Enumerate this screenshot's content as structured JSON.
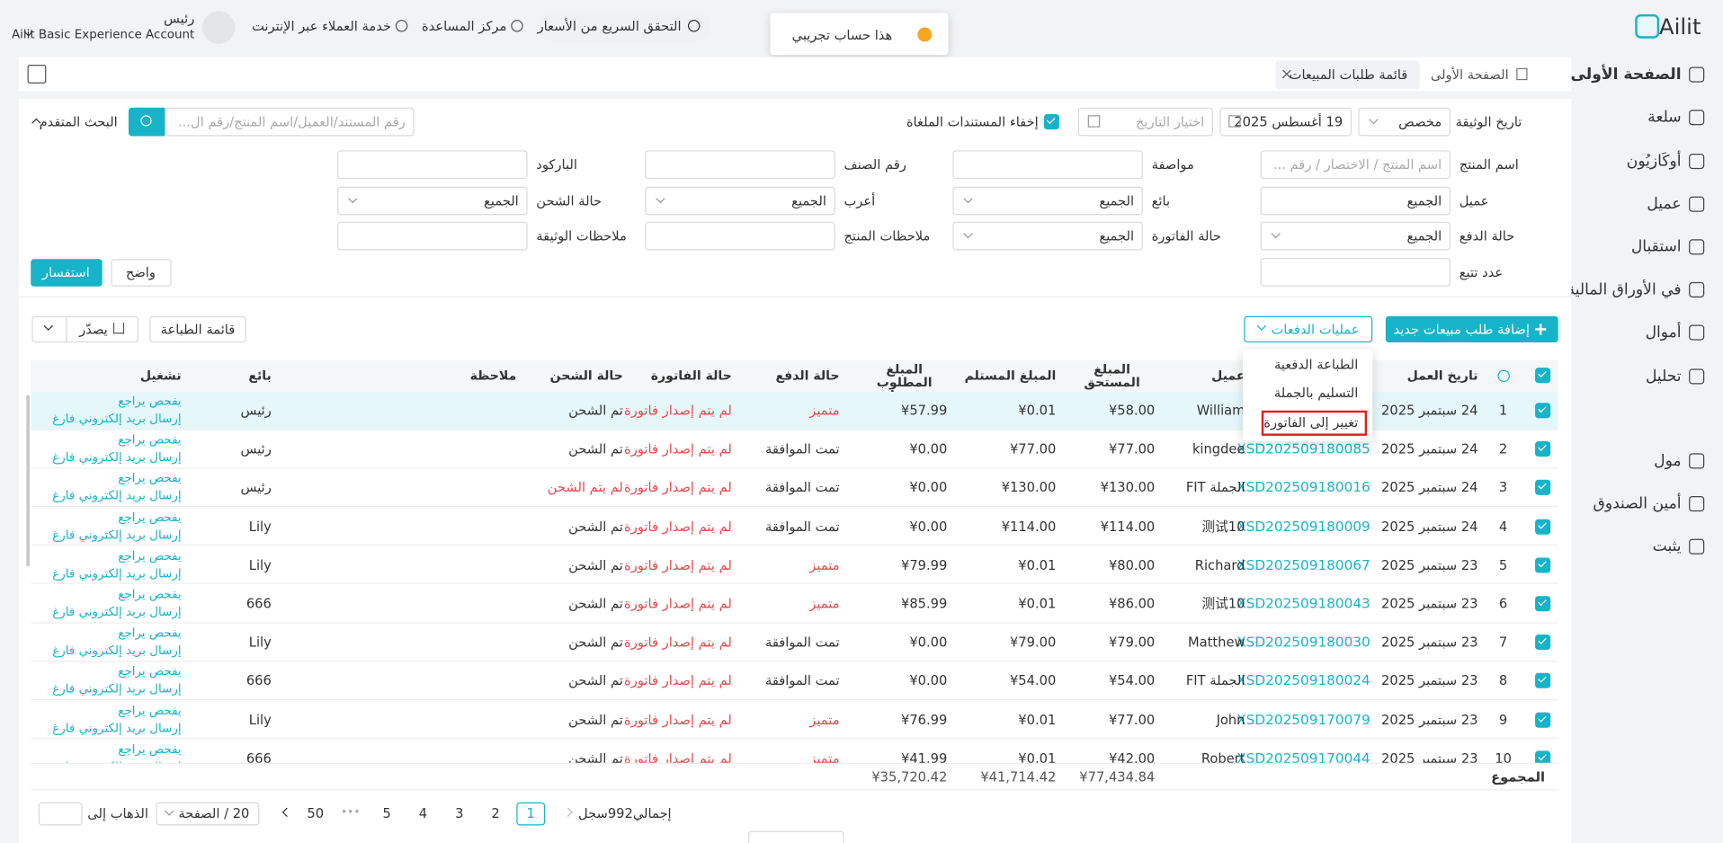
{
  "header": {
    "logo": "Ailit",
    "user": "رئيس",
    "account": "Ailit Basic Experience Account",
    "support": "خدمة العملاء عبر الإنترنت",
    "help": "مركز المساعدة",
    "price_check": "التحقق السريع من الأسعار",
    "toast": "هذا حساب تجريبي"
  },
  "sidebar": [
    "الصفحة الأولى",
    "سلعة",
    "أوكَازيُون",
    "عميل",
    "استقبال",
    "في الأوراق المالية",
    "أموال",
    "تحليل",
    "مول",
    "أمين الصندوق",
    "يثبت"
  ],
  "tabs": [
    "الصفحة الأولى",
    "قائمة طلبات المبيعات"
  ],
  "filters": {
    "doc_date": {
      "label": "تاريخ الوثيقة",
      "mode": "مخصص",
      "date": "19 أغسطس 2025",
      "date_placeholder": "اختيار التاريخ"
    },
    "hide_cancelled": "إخفاء المستندات الملغاة",
    "search_placeholder": "رقم المستند/العميل/اسم المنتج/رقم ال...",
    "advanced": "البحث المتقدم",
    "fields": [
      {
        "label": "اسم المنتج",
        "placeholder": "اسم المنتج / الاختصار / رقم ..."
      },
      {
        "label": "مواصفة"
      },
      {
        "label": "رقم الصنف"
      },
      {
        "label": "الباركود"
      },
      {
        "label": "عميل",
        "value": "الجميع"
      },
      {
        "label": "بائع",
        "value": "الجميع",
        "select": true
      },
      {
        "label": "أعرب",
        "value": "الجميع",
        "select": true
      },
      {
        "label": "حالة الشحن",
        "value": "الجميع",
        "select": true
      },
      {
        "label": "حالة الدفع",
        "value": "الجميع",
        "select": true
      },
      {
        "label": "حالة الفاتورة",
        "value": "الجميع",
        "select": true
      },
      {
        "label": "ملاحظات المنتج"
      },
      {
        "label": "ملاحظات الوثيقة"
      },
      {
        "label": "عدد تتبع"
      }
    ],
    "clear": "واضح",
    "query": "استفسار"
  },
  "actions": {
    "add": "إضافة طلب مبيعات جديد",
    "batch": "عمليات الدفعات",
    "batch_menu": [
      "الطباعة الدفعية",
      "التسليم بالجملة",
      "تغيير إلى الفاتورة"
    ],
    "print_list": "قائمة الطباعة",
    "export": "يصدّر"
  },
  "table": {
    "columns": [
      "تاريخ العمل",
      "عميل",
      "المبلغ المستحق",
      "المبلغ المستلم",
      "المبلغ المطلوب تحصيله",
      "حالة الدفع",
      "حالة الفاتورة",
      "حالة الشحن",
      "ملاحظة",
      "بائع",
      "تشغيل"
    ],
    "operations": [
      "يفحص يراجع",
      "إرسال بريد إلكتروني فارغ"
    ],
    "rows": [
      {
        "n": 1,
        "date": "24 سبتمبر 2025",
        "doc": null,
        "customer": "William",
        "due": "¥58.00",
        "received": "¥0.01",
        "outstanding": "¥57.99",
        "pay": {
          "text": "متميز",
          "color": "#e8484d"
        },
        "invoice": {
          "text": "لم يتم إصدار فاتورة",
          "color": "#e8484d"
        },
        "shipping": {
          "text": "تم الشحن",
          "color": "#333333"
        },
        "seller": "رئيس"
      },
      {
        "n": 2,
        "date": "24 سبتمبر 2025",
        "doc": "XSD202509180085",
        "customer": "kingdee",
        "due": "¥77.00",
        "received": "¥77.00",
        "outstanding": "¥0.00",
        "pay": {
          "text": "تمت الموافقة",
          "color": "#333333"
        },
        "invoice": {
          "text": "لم يتم إصدار فاتورة",
          "color": "#e8484d"
        },
        "shipping": {
          "text": "تم الشحن",
          "color": "#333333"
        },
        "seller": "رئيس"
      },
      {
        "n": 3,
        "date": "24 سبتمبر 2025",
        "doc": "XSD202509180016",
        "customer": "الجملة FIT",
        "due": "¥130.00",
        "received": "¥130.00",
        "outstanding": "¥0.00",
        "pay": {
          "text": "تمت الموافقة",
          "color": "#333333"
        },
        "invoice": {
          "text": "لم يتم إصدار فاتورة",
          "color": "#e8484d"
        },
        "shipping": {
          "text": "لم يتم الشحن",
          "color": "#e8484d"
        },
        "seller": "رئيس"
      },
      {
        "n": 4,
        "date": "24 سبتمبر 2025",
        "doc": "XSD202509180009",
        "customer": "测试10",
        "due": "¥114.00",
        "received": "¥114.00",
        "outstanding": "¥0.00",
        "pay": {
          "text": "تمت الموافقة",
          "color": "#333333"
        },
        "invoice": {
          "text": "لم يتم إصدار فاتورة",
          "color": "#e8484d"
        },
        "shipping": {
          "text": "تم الشحن",
          "color": "#333333"
        },
        "seller": "Lily"
      },
      {
        "n": 5,
        "date": "23 سبتمبر 2025",
        "doc": "XSD202509180067",
        "customer": "Richard",
        "due": "¥80.00",
        "received": "¥0.01",
        "outstanding": "¥79.99",
        "pay": {
          "text": "متميز",
          "color": "#e8484d"
        },
        "invoice": {
          "text": "لم يتم إصدار فاتورة",
          "color": "#e8484d"
        },
        "shipping": {
          "text": "تم الشحن",
          "color": "#333333"
        },
        "seller": "Lily"
      },
      {
        "n": 6,
        "date": "23 سبتمبر 2025",
        "doc": "XSD202509180043",
        "customer": "测试10",
        "due": "¥86.00",
        "received": "¥0.01",
        "outstanding": "¥85.99",
        "pay": {
          "text": "متميز",
          "color": "#e8484d"
        },
        "invoice": {
          "text": "لم يتم إصدار فاتورة",
          "color": "#e8484d"
        },
        "shipping": {
          "text": "تم الشحن",
          "color": "#333333"
        },
        "seller": "666"
      },
      {
        "n": 7,
        "date": "23 سبتمبر 2025",
        "doc": "XSD202509180030",
        "customer": "Matthew",
        "due": "¥79.00",
        "received": "¥79.00",
        "outstanding": "¥0.00",
        "pay": {
          "text": "تمت الموافقة",
          "color": "#333333"
        },
        "invoice": {
          "text": "لم يتم إصدار فاتورة",
          "color": "#e8484d"
        },
        "shipping": {
          "text": "تم الشحن",
          "color": "#333333"
        },
        "seller": "Lily"
      },
      {
        "n": 8,
        "date": "23 سبتمبر 2025",
        "doc": "XSD202509180024",
        "customer": "الجملة FIT",
        "due": "¥54.00",
        "received": "¥54.00",
        "outstanding": "¥0.00",
        "pay": {
          "text": "تمت الموافقة",
          "color": "#333333"
        },
        "invoice": {
          "text": "لم يتم إصدار فاتورة",
          "color": "#e8484d"
        },
        "shipping": {
          "text": "تم الشحن",
          "color": "#333333"
        },
        "seller": "666"
      },
      {
        "n": 9,
        "date": "23 سبتمبر 2025",
        "doc": "XSD202509170079",
        "customer": "John",
        "due": "¥77.00",
        "received": "¥0.01",
        "outstanding": "¥76.99",
        "pay": {
          "text": "متميز",
          "color": "#e8484d"
        },
        "invoice": {
          "text": "لم يتم إصدار فاتورة",
          "color": "#e8484d"
        },
        "shipping": {
          "text": "تم الشحن",
          "color": "#333333"
        },
        "seller": "Lily"
      },
      {
        "n": 10,
        "date": "23 سبتمبر 2025",
        "doc": "XSD202509170044",
        "customer": "Robert",
        "due": "¥42.00",
        "received": "¥0.01",
        "outstanding": "¥41.99",
        "pay": {
          "text": "متميز",
          "color": "#e8484d"
        },
        "invoice": {
          "text": "لم يتم إصدار فاتورة",
          "color": "#e8484d"
        },
        "shipping": {
          "text": "تم الشحن",
          "color": "#333333"
        },
        "seller": "666"
      }
    ],
    "total_label": "المجموع",
    "totals": [
      "¥77,434.84",
      "¥41,714.42",
      "¥35,720.42"
    ]
  },
  "pagination": {
    "total": "إجمالي992سجل",
    "pages": [
      1,
      2,
      3,
      4,
      5,
      50
    ],
    "current": 1,
    "ellipsis": "•••",
    "page_size": "20 / الصفحة",
    "goto": "الذهاب إلى"
  }
}
